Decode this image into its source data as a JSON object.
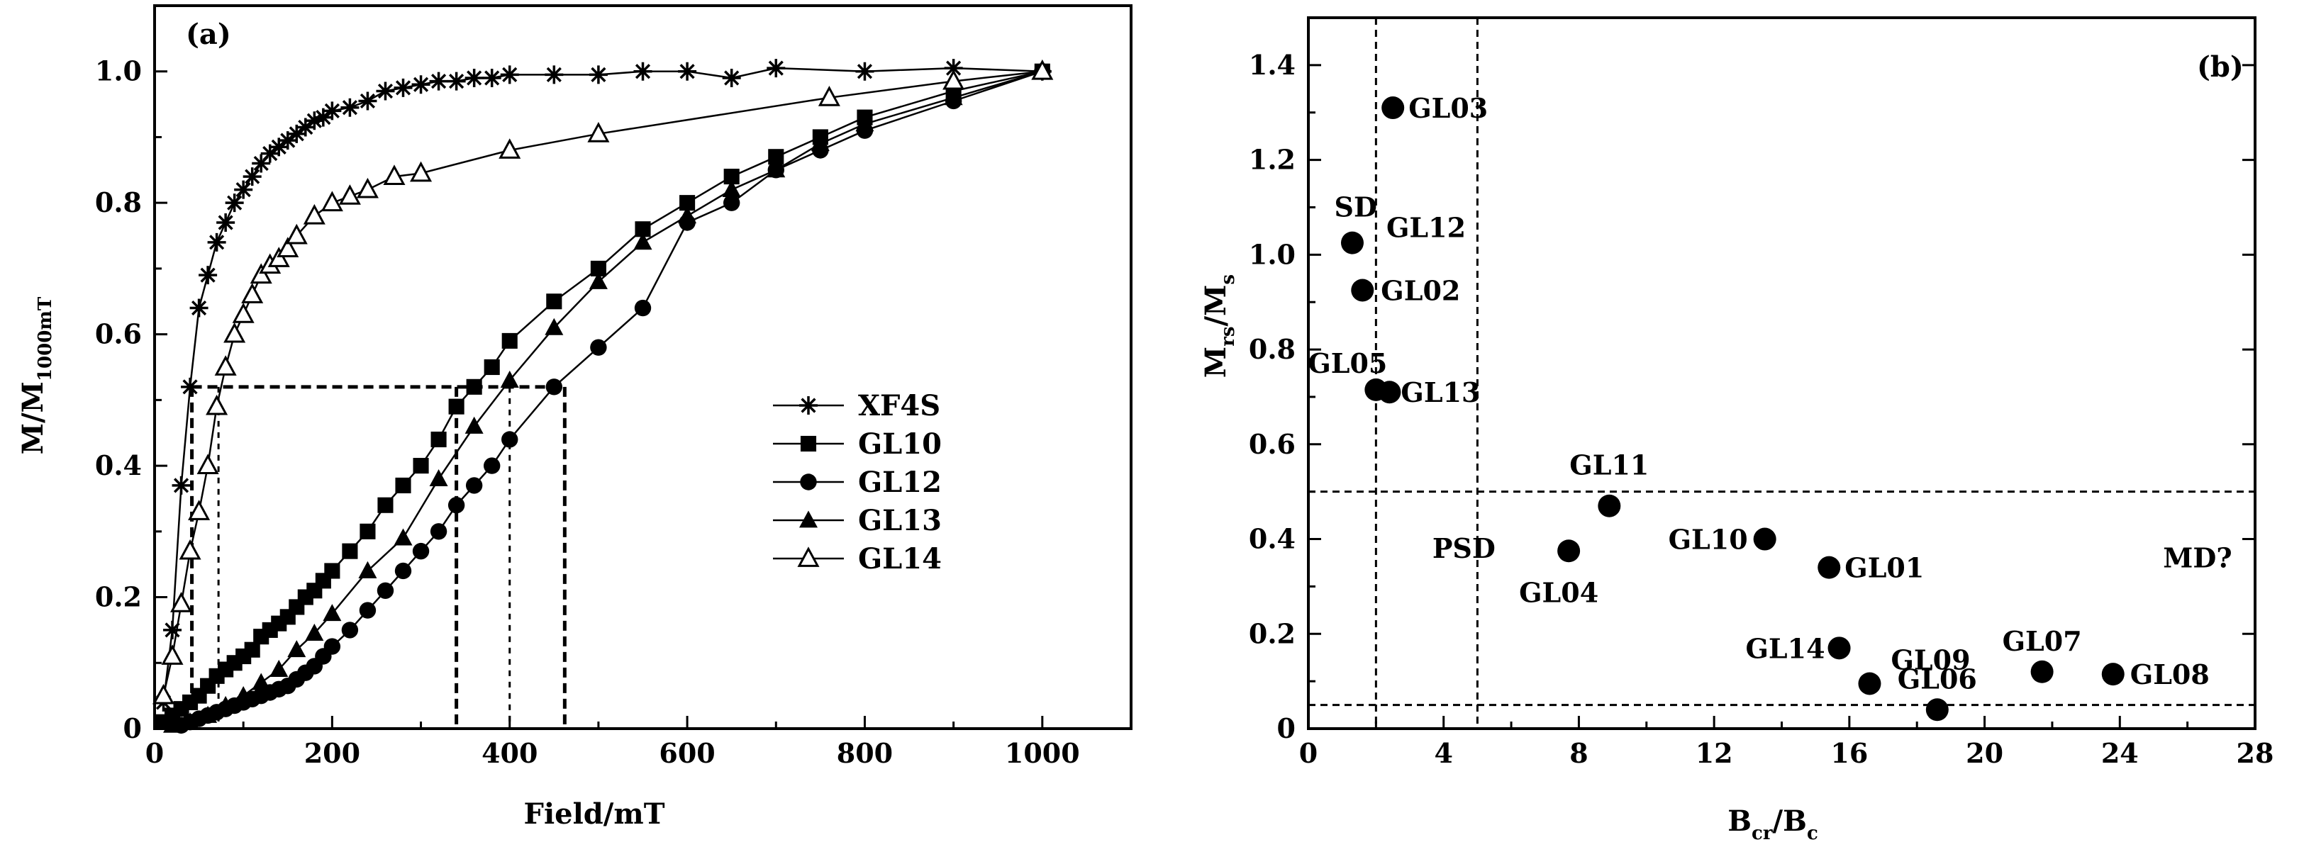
{
  "chart_data": [
    {
      "panel_label": "(a)",
      "type": "line",
      "xlabel": "Field/mT",
      "ylabel_main": "M/M",
      "ylabel_sub": "1000mT",
      "xlim": [
        0,
        1100
      ],
      "ylim": [
        0,
        1.1
      ],
      "xticks": [
        0,
        200,
        400,
        600,
        800,
        1000
      ],
      "xtick_labels": [
        "0",
        "200",
        "400",
        "600",
        "800",
        "1000"
      ],
      "yticks": [
        0,
        0.2,
        0.4,
        0.6,
        0.8,
        1.0
      ],
      "ytick_labels": [
        "0",
        "0.2",
        "0.4",
        "0.6",
        "0.8",
        "1.0"
      ],
      "legend_position": "center-right",
      "series": [
        {
          "name": "XF4S",
          "marker": "star",
          "x": [
            10,
            20,
            30,
            40,
            50,
            60,
            70,
            80,
            90,
            100,
            110,
            120,
            130,
            140,
            150,
            160,
            170,
            180,
            190,
            200,
            220,
            240,
            260,
            280,
            300,
            320,
            340,
            360,
            380,
            400,
            450,
            500,
            550,
            600,
            650,
            700,
            800,
            900,
            1000
          ],
          "y": [
            0.04,
            0.15,
            0.37,
            0.52,
            0.64,
            0.69,
            0.74,
            0.77,
            0.8,
            0.82,
            0.84,
            0.86,
            0.875,
            0.885,
            0.895,
            0.905,
            0.915,
            0.925,
            0.93,
            0.94,
            0.945,
            0.955,
            0.97,
            0.975,
            0.98,
            0.985,
            0.985,
            0.99,
            0.99,
            0.995,
            0.995,
            0.995,
            1.0,
            1.0,
            0.99,
            1.005,
            1.0,
            1.005,
            1.0
          ]
        },
        {
          "name": "GL10",
          "marker": "square",
          "x": [
            10,
            20,
            30,
            40,
            50,
            60,
            70,
            80,
            90,
            100,
            110,
            120,
            130,
            140,
            150,
            160,
            170,
            180,
            190,
            200,
            220,
            240,
            260,
            280,
            300,
            320,
            340,
            360,
            380,
            400,
            450,
            500,
            550,
            600,
            650,
            700,
            750,
            800,
            900,
            1000
          ],
          "y": [
            0.01,
            0.02,
            0.03,
            0.04,
            0.05,
            0.065,
            0.08,
            0.09,
            0.1,
            0.11,
            0.12,
            0.14,
            0.15,
            0.16,
            0.17,
            0.185,
            0.2,
            0.21,
            0.225,
            0.24,
            0.27,
            0.3,
            0.34,
            0.37,
            0.4,
            0.44,
            0.49,
            0.52,
            0.55,
            0.59,
            0.65,
            0.7,
            0.76,
            0.8,
            0.84,
            0.87,
            0.9,
            0.93,
            0.97,
            1.0
          ]
        },
        {
          "name": "GL12",
          "marker": "circle",
          "x": [
            30,
            40,
            50,
            60,
            70,
            80,
            90,
            100,
            110,
            120,
            130,
            140,
            150,
            160,
            170,
            180,
            190,
            200,
            220,
            240,
            260,
            280,
            300,
            320,
            340,
            360,
            380,
            400,
            450,
            500,
            550,
            600,
            650,
            700,
            750,
            800,
            900,
            1000
          ],
          "y": [
            0.005,
            0.01,
            0.015,
            0.02,
            0.025,
            0.03,
            0.035,
            0.04,
            0.045,
            0.05,
            0.055,
            0.06,
            0.065,
            0.075,
            0.085,
            0.095,
            0.11,
            0.125,
            0.15,
            0.18,
            0.21,
            0.24,
            0.27,
            0.3,
            0.34,
            0.37,
            0.4,
            0.44,
            0.52,
            0.58,
            0.64,
            0.77,
            0.8,
            0.85,
            0.88,
            0.91,
            0.955,
            1.0
          ]
        },
        {
          "name": "GL13",
          "marker": "triangle",
          "x": [
            20,
            40,
            60,
            80,
            100,
            120,
            140,
            160,
            180,
            200,
            240,
            280,
            320,
            360,
            400,
            450,
            500,
            550,
            600,
            650,
            700,
            750,
            800,
            900,
            1000
          ],
          "y": [
            0.005,
            0.01,
            0.02,
            0.035,
            0.05,
            0.07,
            0.09,
            0.12,
            0.145,
            0.175,
            0.24,
            0.29,
            0.38,
            0.46,
            0.53,
            0.61,
            0.68,
            0.74,
            0.78,
            0.82,
            0.85,
            0.89,
            0.92,
            0.96,
            1.0
          ]
        },
        {
          "name": "GL14",
          "marker": "triangle-open",
          "x": [
            10,
            20,
            30,
            40,
            50,
            60,
            70,
            80,
            90,
            100,
            110,
            120,
            130,
            140,
            150,
            160,
            180,
            200,
            220,
            240,
            270,
            300,
            400,
            500,
            760,
            900,
            1000
          ],
          "y": [
            0.05,
            0.11,
            0.19,
            0.27,
            0.33,
            0.4,
            0.49,
            0.55,
            0.6,
            0.63,
            0.66,
            0.69,
            0.705,
            0.715,
            0.73,
            0.75,
            0.78,
            0.8,
            0.81,
            0.82,
            0.84,
            0.845,
            0.88,
            0.905,
            0.96,
            0.985,
            1.0
          ]
        }
      ],
      "reference_lines": {
        "y_level": 0.52,
        "x_drops": [
          42,
          72,
          340,
          400,
          462
        ]
      }
    },
    {
      "panel_label": "(b)",
      "type": "scatter",
      "xlabel_main": "B",
      "xlabel_sub1": "cr",
      "xlabel_mid": "/B",
      "xlabel_sub2": "c",
      "ylabel_main": "M",
      "ylabel_sub1": "rs",
      "ylabel_mid": "/M",
      "ylabel_sub2": "s",
      "xlim": [
        0,
        28
      ],
      "ylim": [
        0,
        1.5
      ],
      "xticks": [
        0,
        4,
        8,
        12,
        16,
        20,
        24,
        28
      ],
      "xtick_labels": [
        "0",
        "4",
        "8",
        "12",
        "16",
        "20",
        "24",
        "28"
      ],
      "yticks": [
        0,
        0.2,
        0.4,
        0.6,
        0.8,
        1.0,
        1.2,
        1.4
      ],
      "ytick_labels": [
        "0",
        "0.2",
        "0.4",
        "0.6",
        "0.8",
        "1.0",
        "1.2",
        "1.4"
      ],
      "points": [
        {
          "name": "GL03",
          "x": 2.5,
          "y": 1.31
        },
        {
          "name": "GL12",
          "x": 1.3,
          "y": 1.025
        },
        {
          "name": "GL02",
          "x": 1.6,
          "y": 0.925
        },
        {
          "name": "GL05",
          "x": 2.0,
          "y": 0.715
        },
        {
          "name": "GL13",
          "x": 2.4,
          "y": 0.71
        },
        {
          "name": "GL11",
          "x": 8.9,
          "y": 0.47
        },
        {
          "name": "GL04",
          "x": 7.7,
          "y": 0.375
        },
        {
          "name": "GL10",
          "x": 13.5,
          "y": 0.4
        },
        {
          "name": "GL01",
          "x": 15.4,
          "y": 0.34
        },
        {
          "name": "GL14",
          "x": 15.7,
          "y": 0.17
        },
        {
          "name": "GL09",
          "x": 16.6,
          "y": 0.095
        },
        {
          "name": "GL06",
          "x": 18.6,
          "y": 0.04
        },
        {
          "name": "GL07",
          "x": 21.7,
          "y": 0.12
        },
        {
          "name": "GL08",
          "x": 23.8,
          "y": 0.115
        }
      ],
      "boundary_lines": {
        "x": [
          2,
          5
        ],
        "y": [
          0.05,
          0.5
        ]
      },
      "region_labels": [
        {
          "text": "SD",
          "x": 1.4,
          "y": 1.1
        },
        {
          "text": "PSD",
          "x": 4.6,
          "y": 0.38
        },
        {
          "text": "MD?",
          "x": 26.3,
          "y": 0.36
        }
      ]
    }
  ]
}
